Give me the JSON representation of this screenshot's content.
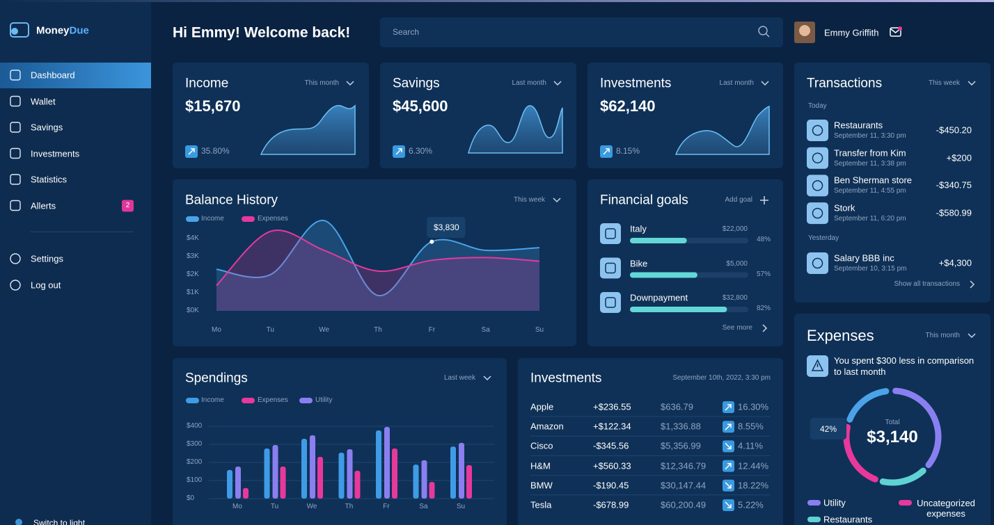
{
  "sidebar": {
    "brand": {
      "main": "Money",
      "accent": "Due"
    },
    "nav": [
      {
        "label": "Dashboard",
        "active": true
      },
      {
        "label": "Wallet"
      },
      {
        "label": "Savings"
      },
      {
        "label": "Investments"
      },
      {
        "label": "Statistics"
      },
      {
        "label": "Allerts",
        "badge": 2
      }
    ],
    "secondary_nav": [
      {
        "label": "Settings"
      },
      {
        "label": "Log out"
      }
    ],
    "theme_toggle": "Switch to light"
  },
  "header": {
    "greeting": "Hi Emmy! Welcome back!",
    "search_placeholder": "Search",
    "user_name": "Emmy Griffith"
  },
  "summary_cards": [
    {
      "title": "Income",
      "period": "This month",
      "amount": "$15,670",
      "change": "35.80%"
    },
    {
      "title": "Savings",
      "period": "Last month",
      "amount": "$45,600",
      "change": "6.30%"
    },
    {
      "title": "Investments",
      "period": "Last month",
      "amount": "$62,140",
      "change": "8.15%"
    }
  ],
  "balance_history": {
    "title": "Balance History",
    "period": "This week",
    "chart_data": {
      "type": "line",
      "categories": [
        "Mo",
        "Tu",
        "We",
        "Th",
        "Fr",
        "Sa",
        "Su"
      ],
      "series": [
        {
          "name": "Income",
          "color": "#4aa3e8",
          "values": [
            2.3,
            2.0,
            5.0,
            0.85,
            3.83,
            3.35,
            3.5
          ]
        },
        {
          "name": "Expenses",
          "color": "#e8389c",
          "values": [
            1.4,
            4.4,
            3.35,
            2.2,
            2.8,
            2.95,
            2.75
          ]
        }
      ],
      "ylim": [
        0,
        5.2
      ],
      "yticks": [
        {
          "value": 0,
          "label": "$0K"
        },
        {
          "value": 1,
          "label": "$1K"
        },
        {
          "value": 2,
          "label": "$2K"
        },
        {
          "value": 3,
          "label": "$3K"
        },
        {
          "value": 4,
          "label": "$4K"
        }
      ],
      "grid": false,
      "annotation": "$3,830"
    }
  },
  "financial_goals": {
    "title": "Financial goals",
    "action": "Add goal",
    "goals": [
      {
        "name": "Italy",
        "amount": "$22,000",
        "progress": 48,
        "progress_label": "48%"
      },
      {
        "name": "Bike",
        "amount": "$5,000",
        "progress": 57,
        "progress_label": "57%"
      },
      {
        "name": "Downpayment",
        "amount": "$32,800",
        "progress": 82,
        "progress_label": "82%"
      }
    ],
    "more": "See more"
  },
  "transactions": {
    "title": "Transactions",
    "period": "This week",
    "groups": [
      {
        "label": "Today",
        "items": [
          {
            "name": "Restaurants",
            "date": "September 11, 3:30 pm",
            "amount": "-$450.20"
          },
          {
            "name": "Transfer from Kim",
            "date": "September 11, 3:38 pm",
            "amount": "+$200"
          },
          {
            "name": "Ben Sherman store",
            "date": "September 11, 4:55 pm",
            "amount": "-$340.75"
          },
          {
            "name": "Stork",
            "date": "September 11, 6:20 pm",
            "amount": "-$580.99"
          }
        ]
      },
      {
        "label": "Yesterday",
        "items": [
          {
            "name": "Salary BBB inc",
            "date": "September 10, 3:15 pm",
            "amount": "+$4,300"
          }
        ]
      }
    ],
    "more": "Show all transactions"
  },
  "spendings": {
    "title": "Spendings",
    "period": "Last week",
    "chart_data": {
      "type": "bar",
      "categories": [
        "Mo",
        "Tu",
        "We",
        "Th",
        "Fr",
        "Sa",
        "Su"
      ],
      "series": [
        {
          "name": "Income",
          "color": "#3f9be6",
          "values": [
            158,
            277,
            331,
            254,
            377,
            188,
            288
          ]
        },
        {
          "name": "Expenses",
          "color": "#e8389c",
          "values": [
            58,
            177,
            231,
            154,
            277,
            92,
            185
          ]
        },
        {
          "name": "Utility",
          "color": "#8a7ff0",
          "values": [
            177,
            296,
            350,
            273,
            396,
            212,
            308
          ]
        }
      ],
      "ylim": [
        0,
        420
      ],
      "yticks": [
        {
          "value": 0,
          "label": "$0"
        },
        {
          "value": 100,
          "label": "$100"
        },
        {
          "value": 200,
          "label": "$200"
        },
        {
          "value": 300,
          "label": "$300"
        },
        {
          "value": 400,
          "label": "$400"
        }
      ],
      "grid": true
    }
  },
  "investments": {
    "title": "Investments",
    "timestamp": "September 10th, 2022, 3:30 pm",
    "rows": [
      {
        "name": "Apple",
        "change": "+$236.55",
        "price": "$636.79",
        "percent": "16.30%",
        "trend": "up"
      },
      {
        "name": "Amazon",
        "change": "+$122.34",
        "price": "$1,336.88",
        "percent": "8.55%",
        "trend": "up"
      },
      {
        "name": "Cisco",
        "change": "-$345.56",
        "price": "$5,356.99",
        "percent": "4.11%",
        "trend": "down"
      },
      {
        "name": "H&M",
        "change": "+$560.33",
        "price": "$12,346.79",
        "percent": "12.44%",
        "trend": "up"
      },
      {
        "name": "BMW",
        "change": "-$190.45",
        "price": "$30,147.44",
        "percent": "18.22%",
        "trend": "down"
      },
      {
        "name": "Tesla",
        "change": "-$678.99",
        "price": "$60,200.49",
        "percent": "5.22%",
        "trend": "down"
      }
    ]
  },
  "expenses": {
    "title": "Expenses",
    "period": "This month",
    "message": "You spent $300 less in comparison to last month",
    "total_label": "Total",
    "total": "$3,140",
    "highlight": "42%",
    "legend": [
      {
        "name": "Utility",
        "color": "#8a7ff0"
      },
      {
        "name": "Uncategorized expenses",
        "color": "#e8389c"
      },
      {
        "name": "Restaurants",
        "color": "#5fd3d3"
      }
    ]
  }
}
